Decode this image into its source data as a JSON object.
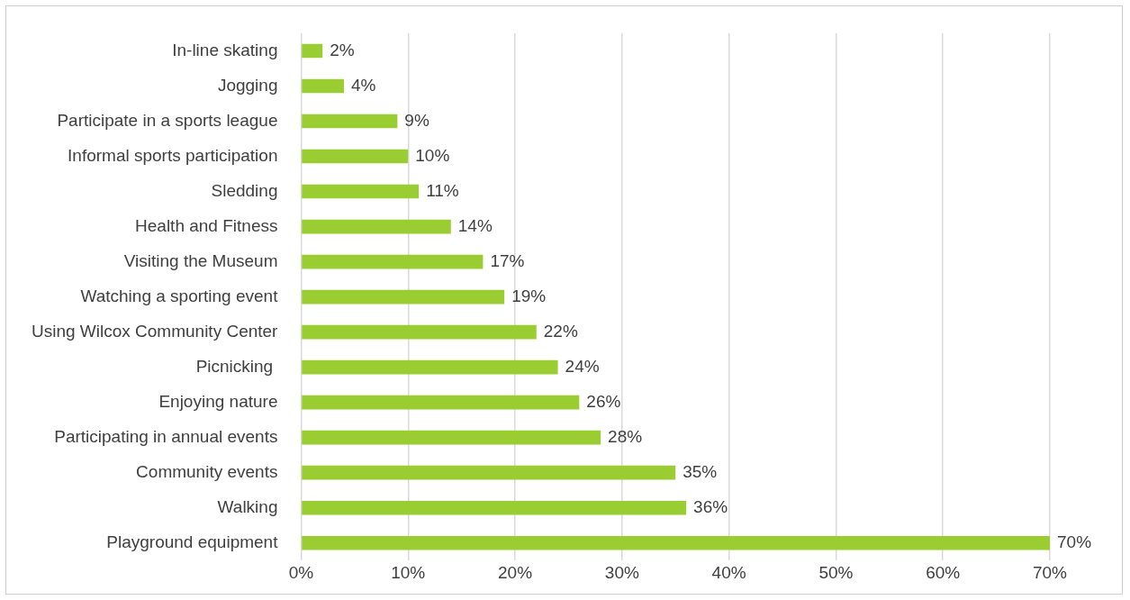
{
  "chart_data": {
    "type": "bar",
    "orientation": "horizontal",
    "categories": [
      "In-line skating",
      "Jogging",
      "Participate in a sports league",
      "Informal sports participation",
      "Sledding",
      "Health and Fitness",
      "Visiting the Museum",
      "Watching a sporting event",
      "Using Wilcox Community Center",
      "Picnicking ",
      "Enjoying nature",
      "Participating in annual events",
      "Community events",
      "Walking",
      "Playground equipment"
    ],
    "values": [
      2,
      4,
      9,
      10,
      11,
      14,
      17,
      19,
      22,
      24,
      26,
      28,
      35,
      36,
      70
    ],
    "value_labels": [
      "2%",
      "4%",
      "9%",
      "10%",
      "11%",
      "14%",
      "17%",
      "19%",
      "22%",
      "24%",
      "26%",
      "28%",
      "35%",
      "36%",
      "70%"
    ],
    "color": "#9acd32",
    "xlim": [
      0,
      70
    ],
    "xticks": [
      {
        "value": 0,
        "label": "0%"
      },
      {
        "value": 10,
        "label": "10%"
      },
      {
        "value": 20,
        "label": "20%"
      },
      {
        "value": 30,
        "label": "30%"
      },
      {
        "value": 40,
        "label": "40%"
      },
      {
        "value": 50,
        "label": "50%"
      },
      {
        "value": 60,
        "label": "60%"
      },
      {
        "value": 70,
        "label": "70%"
      }
    ],
    "grid": "x",
    "legend": false
  }
}
